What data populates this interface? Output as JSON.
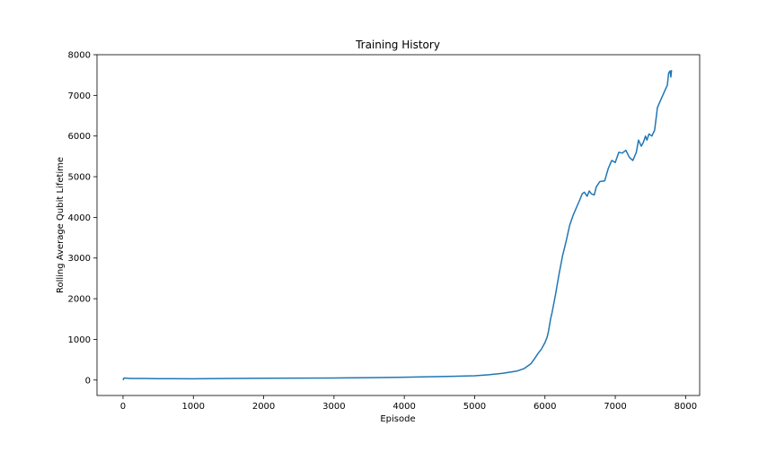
{
  "chart_data": {
    "type": "line",
    "title": "Training History",
    "xlabel": "Episode",
    "ylabel": "Rolling Average Qubit Lifetime",
    "xlim": [
      -370,
      8200
    ],
    "ylim": [
      -380,
      8000
    ],
    "xticks": [
      0,
      1000,
      2000,
      3000,
      4000,
      5000,
      6000,
      7000,
      8000
    ],
    "yticks": [
      0,
      1000,
      2000,
      3000,
      4000,
      5000,
      6000,
      7000,
      8000
    ],
    "grid": false,
    "legend": "none",
    "series": [
      {
        "color": "#1f77b4",
        "points": [
          [
            0,
            0
          ],
          [
            15,
            50
          ],
          [
            100,
            40
          ],
          [
            300,
            38
          ],
          [
            500,
            35
          ],
          [
            700,
            32
          ],
          [
            1000,
            30
          ],
          [
            1500,
            38
          ],
          [
            2000,
            45
          ],
          [
            2500,
            48
          ],
          [
            3000,
            50
          ],
          [
            3500,
            58
          ],
          [
            4000,
            70
          ],
          [
            4500,
            85
          ],
          [
            5000,
            105
          ],
          [
            5200,
            130
          ],
          [
            5400,
            165
          ],
          [
            5600,
            220
          ],
          [
            5700,
            280
          ],
          [
            5800,
            400
          ],
          [
            5850,
            520
          ],
          [
            5900,
            650
          ],
          [
            5950,
            760
          ],
          [
            6000,
            920
          ],
          [
            6030,
            1050
          ],
          [
            6050,
            1200
          ],
          [
            6080,
            1500
          ],
          [
            6100,
            1650
          ],
          [
            6150,
            2100
          ],
          [
            6200,
            2600
          ],
          [
            6250,
            3050
          ],
          [
            6300,
            3400
          ],
          [
            6350,
            3800
          ],
          [
            6400,
            4050
          ],
          [
            6450,
            4250
          ],
          [
            6500,
            4450
          ],
          [
            6530,
            4580
          ],
          [
            6560,
            4620
          ],
          [
            6600,
            4520
          ],
          [
            6630,
            4650
          ],
          [
            6660,
            4580
          ],
          [
            6700,
            4550
          ],
          [
            6730,
            4750
          ],
          [
            6780,
            4880
          ],
          [
            6850,
            4900
          ],
          [
            6900,
            5200
          ],
          [
            6950,
            5400
          ],
          [
            7000,
            5350
          ],
          [
            7050,
            5600
          ],
          [
            7100,
            5580
          ],
          [
            7150,
            5650
          ],
          [
            7200,
            5480
          ],
          [
            7250,
            5400
          ],
          [
            7300,
            5600
          ],
          [
            7330,
            5900
          ],
          [
            7370,
            5750
          ],
          [
            7400,
            5850
          ],
          [
            7430,
            6000
          ],
          [
            7450,
            5900
          ],
          [
            7480,
            6050
          ],
          [
            7520,
            6000
          ],
          [
            7560,
            6150
          ],
          [
            7600,
            6700
          ],
          [
            7650,
            6900
          ],
          [
            7700,
            7100
          ],
          [
            7740,
            7250
          ],
          [
            7760,
            7550
          ],
          [
            7780,
            7600
          ],
          [
            7790,
            7450
          ],
          [
            7800,
            7620
          ]
        ]
      }
    ]
  }
}
